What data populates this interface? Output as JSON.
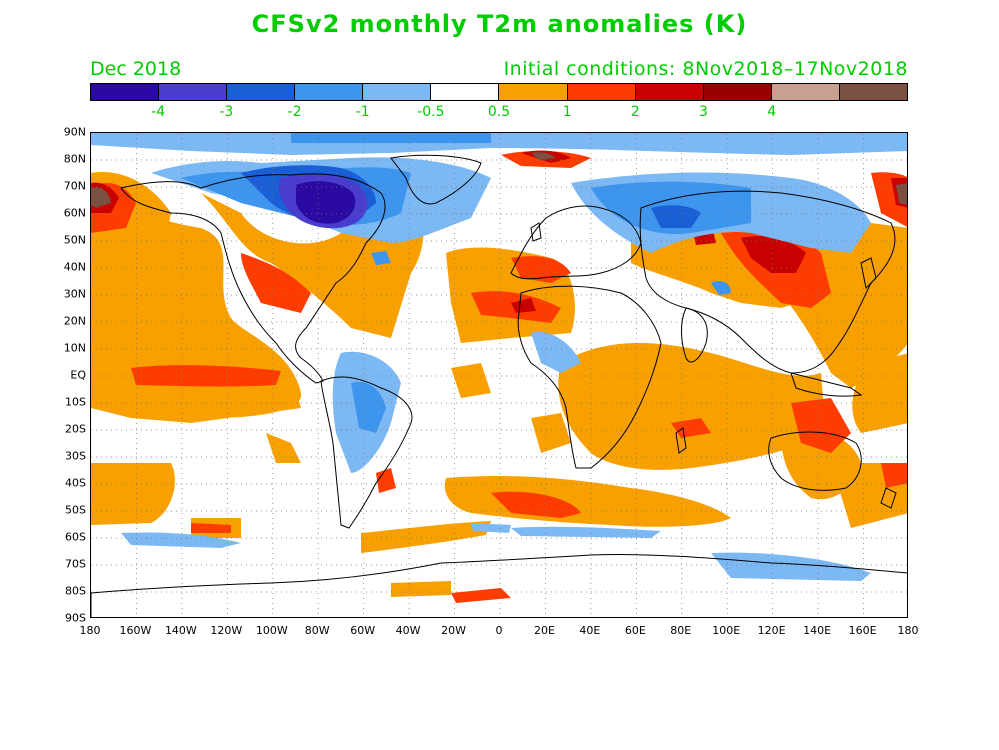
{
  "title": "CFSv2 monthly T2m anomalies (K)",
  "month": "Dec 2018",
  "initial_conditions": "Initial conditions: 8Nov2018–17Nov2018",
  "colorbar": {
    "colors": [
      "#2a0aa0",
      "#4a3ccc",
      "#1a5fd6",
      "#3e95ee",
      "#7cb9f4",
      "#ffffff",
      "#f8a000",
      "#ff3c00",
      "#c80000",
      "#960000",
      "#c8a090",
      "#7a5040"
    ],
    "labels": [
      "-4",
      "-3",
      "-2",
      "-1",
      "-0.5",
      "0.5",
      "1",
      "2",
      "3",
      "4"
    ]
  },
  "lat_labels": [
    "90N",
    "80N",
    "70N",
    "60N",
    "50N",
    "40N",
    "30N",
    "20N",
    "10N",
    "EQ",
    "10S",
    "20S",
    "30S",
    "40S",
    "50S",
    "60S",
    "70S",
    "80S",
    "90S"
  ],
  "lon_labels": [
    "180",
    "160W",
    "140W",
    "120W",
    "100W",
    "80W",
    "60W",
    "40W",
    "20W",
    "0",
    "20E",
    "40E",
    "60E",
    "80E",
    "100E",
    "120E",
    "140E",
    "160E",
    "180"
  ]
}
